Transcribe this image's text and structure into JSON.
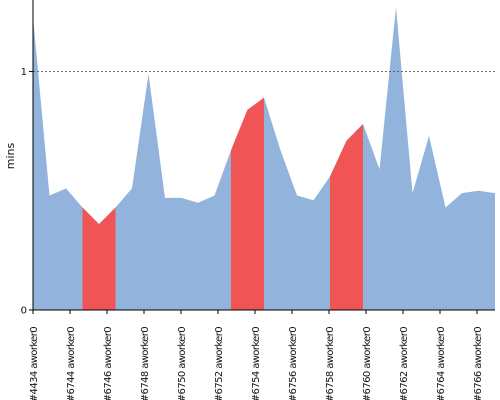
{
  "chart_data": {
    "type": "area",
    "title": "",
    "ylabel": "mins",
    "xlabel": "",
    "ylim": [
      0,
      1.3
    ],
    "grid": false,
    "reference_line": {
      "value": 1,
      "style": "dashed"
    },
    "colors": {
      "normal": "#92b4dc",
      "highlight": "#f05454"
    },
    "x_tick_labels": [
      "#4434 aworker0",
      "#6744 aworker0",
      "#6746 aworker0",
      "#6748 aworker0",
      "#6750 aworker0",
      "#6752 aworker0",
      "#6754 aworker0",
      "#6756 aworker0",
      "#6758 aworker0",
      "#6760 aworker0",
      "#6762 aworker0",
      "#6764 aworker0",
      "#6766 aworker0"
    ],
    "y_ticks": [
      {
        "value": 0,
        "label": "0"
      },
      {
        "value": 1,
        "label": "1"
      }
    ],
    "values": [
      1.23,
      0.48,
      0.51,
      0.43,
      0.36,
      0.43,
      0.51,
      0.99,
      0.47,
      0.47,
      0.45,
      0.48,
      0.67,
      0.84,
      0.89,
      0.67,
      0.48,
      0.46,
      0.56,
      0.71,
      0.78,
      0.59,
      1.27,
      0.49,
      0.73,
      0.43,
      0.49,
      0.5,
      0.49
    ],
    "highlight_ranges": [
      [
        3,
        5
      ],
      [
        12,
        14
      ],
      [
        18,
        20
      ]
    ],
    "series": [
      {
        "name": "",
        "values": [
          1.23,
          0.48,
          0.51,
          0.43,
          0.36,
          0.43,
          0.51,
          0.99,
          0.47,
          0.47,
          0.45,
          0.48,
          0.67,
          0.84,
          0.89,
          0.67,
          0.48,
          0.46,
          0.56,
          0.71,
          0.78,
          0.59,
          1.27,
          0.49,
          0.73,
          0.43,
          0.49,
          0.5,
          0.49
        ]
      }
    ]
  }
}
